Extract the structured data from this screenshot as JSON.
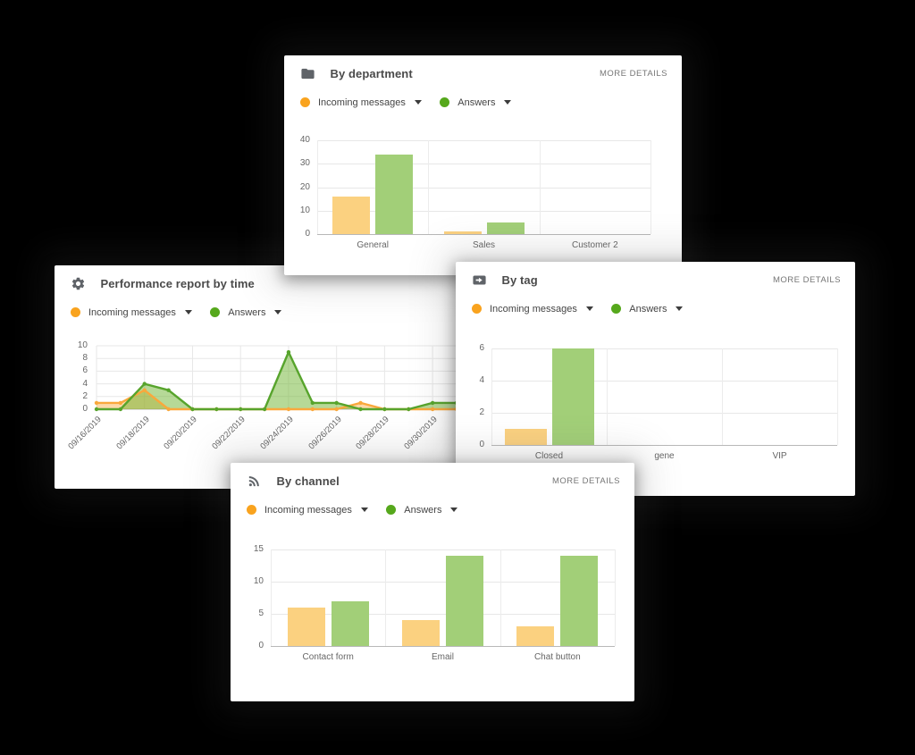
{
  "legend": {
    "incoming": "Incoming messages",
    "answers": "Answers"
  },
  "panels": {
    "department": {
      "title": "By department",
      "more_details": "MORE DETAILS"
    },
    "performance": {
      "title": "Performance report by time"
    },
    "tag": {
      "title": "By tag",
      "more_details": "MORE DETAILS"
    },
    "channel": {
      "title": "By channel",
      "more_details": "MORE DETAILS"
    }
  },
  "colors": {
    "incoming_orange_dot": "#F9A31E",
    "answers_green_dot": "#56A81C",
    "bar_orange": "#FBD180",
    "bar_green": "#A2CF78",
    "line_orange": "#F9A83C",
    "line_green": "#57A42C",
    "card_bg": "#FFFFFF",
    "page_bg": "#000000",
    "title_text": "#4A4A4A",
    "muted_text": "#757575"
  },
  "chart_data": [
    {
      "id": "department",
      "type": "bar",
      "title": "By department",
      "categories": [
        "General",
        "Sales",
        "Customer 2"
      ],
      "series": [
        {
          "name": "Incoming messages",
          "color": "#FBD180",
          "values": [
            16,
            1,
            0
          ]
        },
        {
          "name": "Answers",
          "color": "#A2CF78",
          "values": [
            34,
            5,
            0
          ]
        }
      ],
      "yticks": [
        0,
        10,
        20,
        30,
        40
      ],
      "ylim": [
        0,
        40
      ],
      "grid": true,
      "legend_position": "top-left"
    },
    {
      "id": "performance",
      "type": "area",
      "title": "Performance report by time",
      "x": [
        "09/16/2019",
        "09/17/2019",
        "09/18/2019",
        "09/19/2019",
        "09/20/2019",
        "09/21/2019",
        "09/22/2019",
        "09/23/2019",
        "09/24/2019",
        "09/25/2019",
        "09/26/2019",
        "09/27/2019",
        "09/28/2019",
        "09/29/2019",
        "09/30/2019",
        "10/01/2019"
      ],
      "xtick_every": 2,
      "series": [
        {
          "name": "Incoming messages",
          "color": "#F9A83C",
          "fill": "#F9A83C",
          "fill_opacity": 0.45,
          "values": [
            1,
            1,
            3,
            0,
            0,
            0,
            0,
            0,
            0,
            0,
            0,
            1,
            0,
            0,
            0,
            0
          ]
        },
        {
          "name": "Answers",
          "color": "#57A42C",
          "fill": "#6DB32F",
          "fill_opacity": 0.5,
          "values": [
            0,
            0,
            4,
            3,
            0,
            0,
            0,
            0,
            9,
            1,
            1,
            0,
            0,
            0,
            1,
            1
          ]
        }
      ],
      "yticks": [
        0,
        2,
        4,
        6,
        8,
        10
      ],
      "ylim": [
        0,
        10
      ],
      "grid": true,
      "legend_position": "top-left"
    },
    {
      "id": "tag",
      "type": "bar",
      "title": "By tag",
      "categories": [
        "Closed",
        "gene",
        "VIP"
      ],
      "series": [
        {
          "name": "Incoming messages",
          "color": "#FBD180",
          "values": [
            1,
            0,
            0
          ]
        },
        {
          "name": "Answers",
          "color": "#A2CF78",
          "values": [
            6,
            0,
            0
          ]
        }
      ],
      "yticks": [
        0,
        2,
        4,
        6
      ],
      "ylim": [
        0,
        6
      ],
      "grid": true,
      "legend_position": "top-left"
    },
    {
      "id": "channel",
      "type": "bar",
      "title": "By channel",
      "categories": [
        "Contact form",
        "Email",
        "Chat button"
      ],
      "series": [
        {
          "name": "Incoming messages",
          "color": "#FBD180",
          "values": [
            6,
            4,
            3
          ]
        },
        {
          "name": "Answers",
          "color": "#A2CF78",
          "values": [
            7,
            14,
            14
          ]
        }
      ],
      "yticks": [
        0,
        5,
        10,
        15
      ],
      "ylim": [
        0,
        15
      ],
      "grid": true,
      "legend_position": "top-left"
    }
  ]
}
